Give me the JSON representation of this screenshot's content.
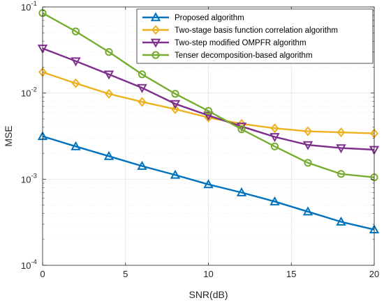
{
  "chart_data": {
    "type": "line",
    "xlabel": "SNR(dB)",
    "ylabel": "MSE",
    "x": [
      0,
      2,
      4,
      6,
      8,
      10,
      12,
      14,
      16,
      18,
      20
    ],
    "xlim": [
      0,
      20
    ],
    "ylim": [
      0.0001,
      0.1
    ],
    "yscale": "log",
    "x_ticks": [
      0,
      5,
      10,
      15,
      20
    ],
    "y_ticks": [
      {
        "value": 0.0001,
        "mantissa": "10",
        "exponent": "-4"
      },
      {
        "value": 0.001,
        "mantissa": "10",
        "exponent": "-3"
      },
      {
        "value": 0.01,
        "mantissa": "10",
        "exponent": "-2"
      },
      {
        "value": 0.1,
        "mantissa": "10",
        "exponent": "-1"
      }
    ],
    "grid": true,
    "legend_position": "top-right",
    "series": [
      {
        "name": "Proposed algorithm",
        "color": "#0072BD",
        "marker": "triangle-up",
        "values": [
          0.00315,
          0.0024,
          0.00185,
          0.00142,
          0.00112,
          0.00087,
          0.0007,
          0.00055,
          0.00042,
          0.00032,
          0.00026
        ]
      },
      {
        "name": "Two-stage basis function correlation algorithm",
        "color": "#EDB120",
        "marker": "diamond",
        "values": [
          0.0175,
          0.013,
          0.0098,
          0.0079,
          0.0065,
          0.0052,
          0.0044,
          0.0039,
          0.0036,
          0.0035,
          0.0034
        ]
      },
      {
        "name": "Two-step modified OMPFR algorithm",
        "color": "#7E2F8E",
        "marker": "triangle-down",
        "values": [
          0.033,
          0.0235,
          0.0165,
          0.0115,
          0.0075,
          0.0055,
          0.0041,
          0.0031,
          0.0025,
          0.0023,
          0.0022
        ]
      },
      {
        "name": "Tenser decomposition-based algorithm",
        "color": "#77AC30",
        "marker": "circle",
        "values": [
          0.085,
          0.052,
          0.03,
          0.0165,
          0.0098,
          0.0062,
          0.0038,
          0.0024,
          0.00155,
          0.00115,
          0.00105
        ]
      }
    ]
  }
}
